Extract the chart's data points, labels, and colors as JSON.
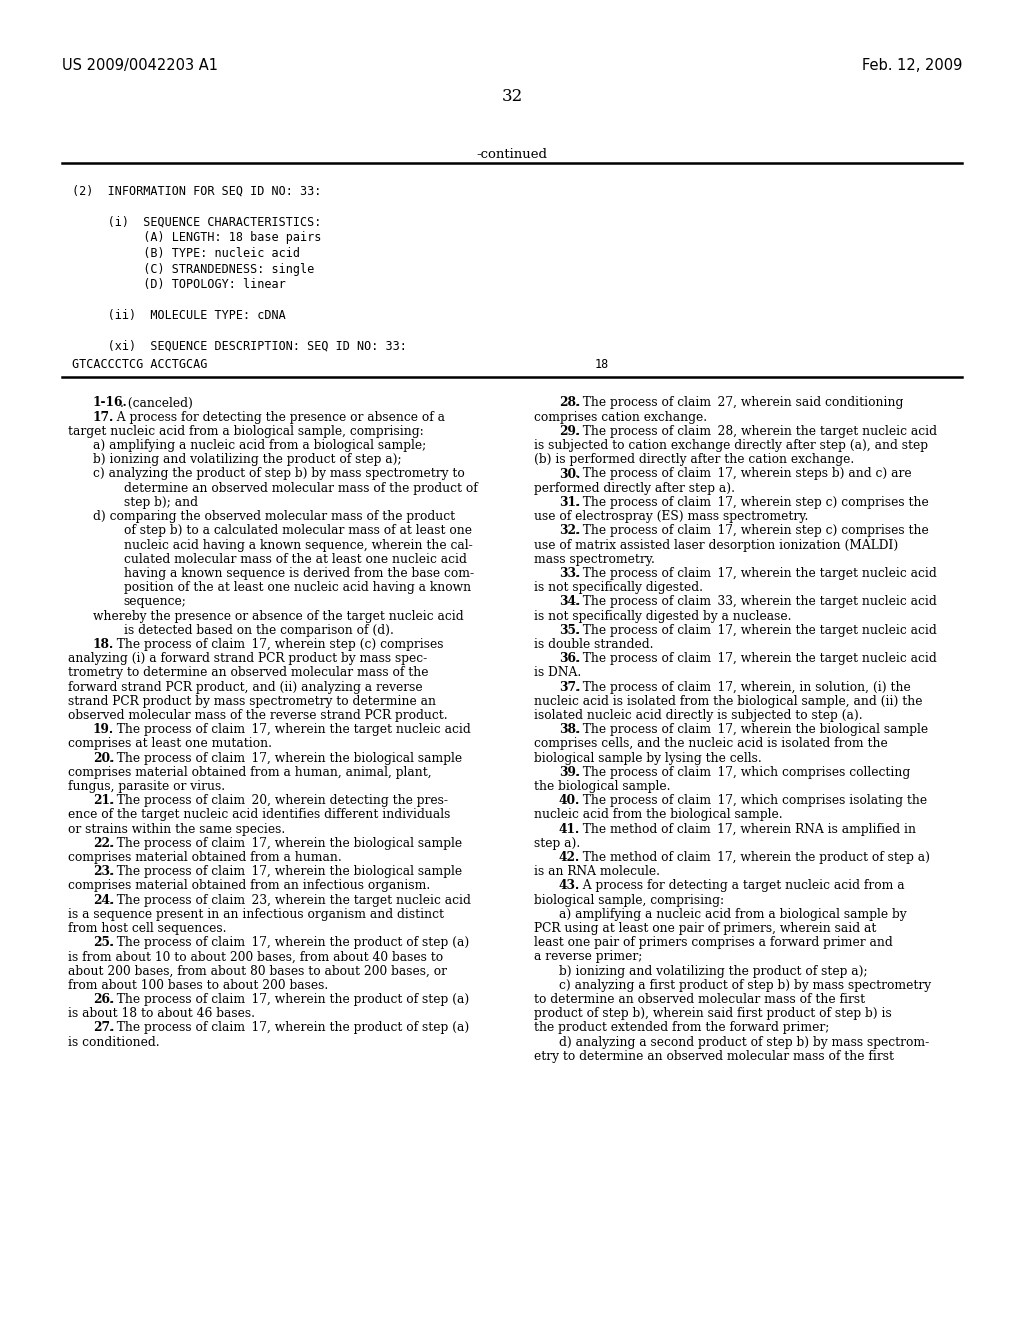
{
  "bg_color": "#ffffff",
  "header_left": "US 2009/0042203 A1",
  "header_right": "Feb. 12, 2009",
  "page_number": "32",
  "continued_text": "-continued",
  "mono_block": [
    "(2)  INFORMATION FOR SEQ ID NO: 33:",
    "",
    "     (i)  SEQUENCE CHARACTERISTICS:",
    "          (A) LENGTH: 18 base pairs",
    "          (B) TYPE: nucleic acid",
    "          (C) STRANDEDNESS: single",
    "          (D) TOPOLOGY: linear",
    "",
    "     (ii)  MOLECULE TYPE: cDNA",
    "",
    "     (xi)  SEQUENCE DESCRIPTION: SEQ ID NO: 33:"
  ],
  "seq_line": "GTCACCCTCG ACCTGCAG",
  "seq_number": "18",
  "left_col": [
    {
      "indent": 4,
      "bold_num": "1-16",
      "text": ". (canceled)"
    },
    {
      "indent": 4,
      "bold_num": "17",
      "text": ". A process for detecting the presence or absence of a"
    },
    {
      "indent": 0,
      "bold_num": "",
      "text": "target nucleic acid from a biological sample, comprising:"
    },
    {
      "indent": 4,
      "bold_num": "",
      "text": "a) amplifying a nucleic acid from a biological sample;"
    },
    {
      "indent": 4,
      "bold_num": "",
      "text": "b) ionizing and volatilizing the product of step a);"
    },
    {
      "indent": 4,
      "bold_num": "",
      "text": "c) analyzing the product of step b) by mass spectrometry to"
    },
    {
      "indent": 9,
      "bold_num": "",
      "text": "determine an observed molecular mass of the product of"
    },
    {
      "indent": 9,
      "bold_num": "",
      "text": "step b); and"
    },
    {
      "indent": 4,
      "bold_num": "",
      "text": "d) comparing the observed molecular mass of the product"
    },
    {
      "indent": 9,
      "bold_num": "",
      "text": "of step b) to a calculated molecular mass of at least one"
    },
    {
      "indent": 9,
      "bold_num": "",
      "text": "nucleic acid having a known sequence, wherein the cal-"
    },
    {
      "indent": 9,
      "bold_num": "",
      "text": "culated molecular mass of the at least one nucleic acid"
    },
    {
      "indent": 9,
      "bold_num": "",
      "text": "having a known sequence is derived from the base com-"
    },
    {
      "indent": 9,
      "bold_num": "",
      "text": "position of the at least one nucleic acid having a known"
    },
    {
      "indent": 9,
      "bold_num": "",
      "text": "sequence;"
    },
    {
      "indent": 4,
      "bold_num": "",
      "text": "whereby the presence or absence of the target nucleic acid"
    },
    {
      "indent": 9,
      "bold_num": "",
      "text": "is detected based on the comparison of (d)."
    },
    {
      "indent": 4,
      "bold_num": "18",
      "text": ". The process of claim ⁠ 17​, wherein step (c) comprises"
    },
    {
      "indent": 0,
      "bold_num": "",
      "text": "analyzing (i) a forward strand PCR product by mass spec-"
    },
    {
      "indent": 0,
      "bold_num": "",
      "text": "trometry to determine an observed molecular mass of the"
    },
    {
      "indent": 0,
      "bold_num": "",
      "text": "forward strand PCR product, and (ii) analyzing a reverse"
    },
    {
      "indent": 0,
      "bold_num": "",
      "text": "strand PCR product by mass spectrometry to determine an"
    },
    {
      "indent": 0,
      "bold_num": "",
      "text": "observed molecular mass of the reverse strand PCR product."
    },
    {
      "indent": 4,
      "bold_num": "19",
      "text": ". The process of claim ⁠ 17​, wherein the target nucleic acid"
    },
    {
      "indent": 0,
      "bold_num": "",
      "text": "comprises at least one mutation."
    },
    {
      "indent": 4,
      "bold_num": "20",
      "text": ". The process of claim ⁠ 17​, wherein the biological sample"
    },
    {
      "indent": 0,
      "bold_num": "",
      "text": "comprises material obtained from a human, animal, plant,"
    },
    {
      "indent": 0,
      "bold_num": "",
      "text": "fungus, parasite or virus."
    },
    {
      "indent": 4,
      "bold_num": "21",
      "text": ". The process of claim ⁠ 20​, wherein detecting the pres-"
    },
    {
      "indent": 0,
      "bold_num": "",
      "text": "ence of the target nucleic acid identifies different individuals"
    },
    {
      "indent": 0,
      "bold_num": "",
      "text": "or strains within the same species."
    },
    {
      "indent": 4,
      "bold_num": "22",
      "text": ". The process of claim ⁠ 17​, wherein the biological sample"
    },
    {
      "indent": 0,
      "bold_num": "",
      "text": "comprises material obtained from a human."
    },
    {
      "indent": 4,
      "bold_num": "23",
      "text": ". The process of claim ⁠ 17​, wherein the biological sample"
    },
    {
      "indent": 0,
      "bold_num": "",
      "text": "comprises material obtained from an infectious organism."
    },
    {
      "indent": 4,
      "bold_num": "24",
      "text": ". The process of claim ⁠ 23​, wherein the target nucleic acid"
    },
    {
      "indent": 0,
      "bold_num": "",
      "text": "is a sequence present in an infectious organism and distinct"
    },
    {
      "indent": 0,
      "bold_num": "",
      "text": "from host cell sequences."
    },
    {
      "indent": 4,
      "bold_num": "25",
      "text": ". The process of claim ⁠ 17​, wherein the product of step (a)"
    },
    {
      "indent": 0,
      "bold_num": "",
      "text": "is from about 10 to about 200 bases, from about 40 bases to"
    },
    {
      "indent": 0,
      "bold_num": "",
      "text": "about 200 bases, from about 80 bases to about 200 bases, or"
    },
    {
      "indent": 0,
      "bold_num": "",
      "text": "from about 100 bases to about 200 bases."
    },
    {
      "indent": 4,
      "bold_num": "26",
      "text": ". The process of claim ⁠ 17​, wherein the product of step (a)"
    },
    {
      "indent": 0,
      "bold_num": "",
      "text": "is about 18 to about 46 bases."
    },
    {
      "indent": 4,
      "bold_num": "27",
      "text": ". The process of claim ⁠ 17​, wherein the product of step (a)"
    },
    {
      "indent": 0,
      "bold_num": "",
      "text": "is conditioned."
    }
  ],
  "right_col": [
    {
      "indent": 4,
      "bold_num": "28",
      "text": ". The process of claim ⁠ 27​, wherein said conditioning"
    },
    {
      "indent": 0,
      "bold_num": "",
      "text": "comprises cation exchange."
    },
    {
      "indent": 4,
      "bold_num": "29",
      "text": ". The process of claim ⁠ 28​, wherein the target nucleic acid"
    },
    {
      "indent": 0,
      "bold_num": "",
      "text": "is subjected to cation exchange directly after step (a), and step"
    },
    {
      "indent": 0,
      "bold_num": "",
      "text": "(b) is performed directly after the cation exchange."
    },
    {
      "indent": 4,
      "bold_num": "30",
      "text": ". The process of claim ⁠ 17​, wherein steps b) and c) are"
    },
    {
      "indent": 0,
      "bold_num": "",
      "text": "performed directly after step a)."
    },
    {
      "indent": 4,
      "bold_num": "31",
      "text": ". The process of claim ⁠ 17​, wherein step c) comprises the"
    },
    {
      "indent": 0,
      "bold_num": "",
      "text": "use of electrospray (ES) mass spectrometry."
    },
    {
      "indent": 4,
      "bold_num": "32",
      "text": ". The process of claim ⁠ 17​, wherein step c) comprises the"
    },
    {
      "indent": 0,
      "bold_num": "",
      "text": "use of matrix assisted laser desorption ionization (MALDI)"
    },
    {
      "indent": 0,
      "bold_num": "",
      "text": "mass spectrometry."
    },
    {
      "indent": 4,
      "bold_num": "33",
      "text": ". The process of claim ⁠ 17​, wherein the target nucleic acid"
    },
    {
      "indent": 0,
      "bold_num": "",
      "text": "is not specifically digested."
    },
    {
      "indent": 4,
      "bold_num": "34",
      "text": ". The process of claim ⁠ 33​, wherein the target nucleic acid"
    },
    {
      "indent": 0,
      "bold_num": "",
      "text": "is not specifically digested by a nuclease."
    },
    {
      "indent": 4,
      "bold_num": "35",
      "text": ". The process of claim ⁠ 17​, wherein the target nucleic acid"
    },
    {
      "indent": 0,
      "bold_num": "",
      "text": "is double stranded."
    },
    {
      "indent": 4,
      "bold_num": "36",
      "text": ". The process of claim ⁠ 17​, wherein the target nucleic acid"
    },
    {
      "indent": 0,
      "bold_num": "",
      "text": "is DNA."
    },
    {
      "indent": 4,
      "bold_num": "37",
      "text": ". The process of claim ⁠ 17​, wherein, in solution, (i) the"
    },
    {
      "indent": 0,
      "bold_num": "",
      "text": "nucleic acid is isolated from the biological sample, and (ii) the"
    },
    {
      "indent": 0,
      "bold_num": "",
      "text": "isolated nucleic acid directly is subjected to step (a)."
    },
    {
      "indent": 4,
      "bold_num": "38",
      "text": ". The process of claim ⁠ 17​, wherein the biological sample"
    },
    {
      "indent": 0,
      "bold_num": "",
      "text": "comprises cells, and the nucleic acid is isolated from the"
    },
    {
      "indent": 0,
      "bold_num": "",
      "text": "biological sample by lysing the cells."
    },
    {
      "indent": 4,
      "bold_num": "39",
      "text": ". The process of claim ⁠ 17​, which comprises collecting"
    },
    {
      "indent": 0,
      "bold_num": "",
      "text": "the biological sample."
    },
    {
      "indent": 4,
      "bold_num": "40",
      "text": ". The process of claim ⁠ 17​, which comprises isolating the"
    },
    {
      "indent": 0,
      "bold_num": "",
      "text": "nucleic acid from the biological sample."
    },
    {
      "indent": 4,
      "bold_num": "41",
      "text": ". The method of claim ⁠ 17​, wherein RNA is amplified in"
    },
    {
      "indent": 0,
      "bold_num": "",
      "text": "step a)."
    },
    {
      "indent": 4,
      "bold_num": "42",
      "text": ". The method of claim ⁠ 17​, wherein the product of step a)"
    },
    {
      "indent": 0,
      "bold_num": "",
      "text": "is an RNA molecule."
    },
    {
      "indent": 4,
      "bold_num": "43",
      "text": ". A process for detecting a target nucleic acid from a"
    },
    {
      "indent": 0,
      "bold_num": "",
      "text": "biological sample, comprising:"
    },
    {
      "indent": 4,
      "bold_num": "",
      "text": "a) amplifying a nucleic acid from a biological sample by"
    },
    {
      "indent": 0,
      "bold_num": "",
      "text": "PCR using at least one pair of primers, wherein said at"
    },
    {
      "indent": 0,
      "bold_num": "",
      "text": "least one pair of primers comprises a forward primer and"
    },
    {
      "indent": 0,
      "bold_num": "",
      "text": "a reverse primer;"
    },
    {
      "indent": 4,
      "bold_num": "",
      "text": "b) ionizing and volatilizing the product of step a);"
    },
    {
      "indent": 4,
      "bold_num": "",
      "text": "c) analyzing a first product of step b) by mass spectrometry"
    },
    {
      "indent": 0,
      "bold_num": "",
      "text": "to determine an observed molecular mass of the first"
    },
    {
      "indent": 0,
      "bold_num": "",
      "text": "product of step b), wherein said first product of step b) is"
    },
    {
      "indent": 0,
      "bold_num": "",
      "text": "the product extended from the forward primer;"
    },
    {
      "indent": 4,
      "bold_num": "",
      "text": "d) analyzing a second product of step b) by mass spectrom-"
    },
    {
      "indent": 0,
      "bold_num": "",
      "text": "etry to determine an observed molecular mass of the first"
    }
  ]
}
